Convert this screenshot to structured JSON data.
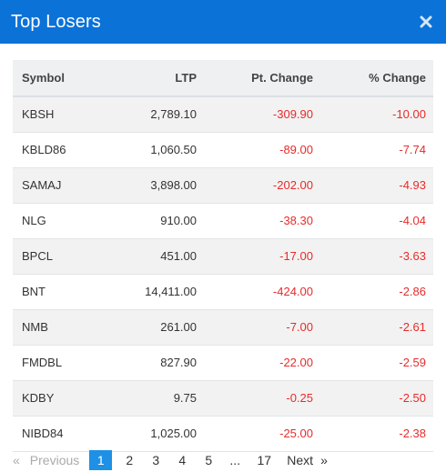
{
  "header": {
    "title": "Top Losers",
    "close_icon": "close-icon"
  },
  "table": {
    "columns": [
      "Symbol",
      "LTP",
      "Pt. Change",
      "% Change"
    ],
    "rows": [
      [
        "KBSH",
        "2,789.10",
        "-309.90",
        "-10.00"
      ],
      [
        "KBLD86",
        "1,060.50",
        "-89.00",
        "-7.74"
      ],
      [
        "SAMAJ",
        "3,898.00",
        "-202.00",
        "-4.93"
      ],
      [
        "NLG",
        "910.00",
        "-38.30",
        "-4.04"
      ],
      [
        "BPCL",
        "451.00",
        "-17.00",
        "-3.63"
      ],
      [
        "BNT",
        "14,411.00",
        "-424.00",
        "-2.86"
      ],
      [
        "NMB",
        "261.00",
        "-7.00",
        "-2.61"
      ],
      [
        "FMDBL",
        "827.90",
        "-22.00",
        "-2.59"
      ],
      [
        "KDBY",
        "9.75",
        "-0.25",
        "-2.50"
      ],
      [
        "NIBD84",
        "1,025.00",
        "-25.00",
        "-2.38"
      ]
    ],
    "negative_color": "#e82b2b"
  },
  "pagination": {
    "prev_glyph": "«",
    "prev_label": "Previous",
    "pages": [
      "1",
      "2",
      "3",
      "4",
      "5",
      "...",
      "17"
    ],
    "current": "1",
    "next_label": "Next",
    "next_glyph": "»"
  },
  "colors": {
    "header_bg": "#0b72d8",
    "active_page_bg": "#1e90e6"
  }
}
